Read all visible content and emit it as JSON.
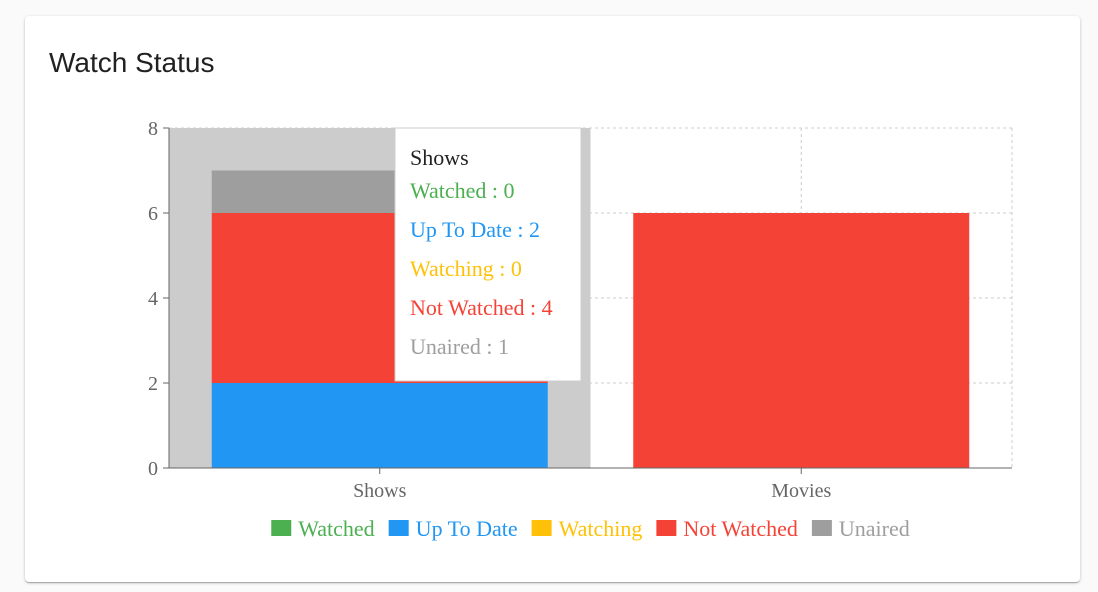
{
  "card": {
    "title": "Watch Status"
  },
  "chart_data": {
    "type": "bar",
    "stacked": true,
    "categories": [
      "Shows",
      "Movies"
    ],
    "series": [
      {
        "name": "Watched",
        "values": [
          0,
          0
        ],
        "color": "#4caf50"
      },
      {
        "name": "Up To Date",
        "values": [
          2,
          0
        ],
        "color": "#2196f3"
      },
      {
        "name": "Watching",
        "values": [
          0,
          0
        ],
        "color": "#ffc107"
      },
      {
        "name": "Not Watched",
        "values": [
          4,
          6
        ],
        "color": "#f44336"
      },
      {
        "name": "Unaired",
        "values": [
          1,
          0
        ],
        "color": "#9e9e9e"
      }
    ],
    "ylim": [
      0,
      8
    ],
    "yticks": [
      "0",
      "2",
      "4",
      "6",
      "8"
    ],
    "grid": true,
    "legend": "bottom",
    "active_category": "Shows",
    "tooltip": {
      "title": "Shows",
      "items": [
        {
          "label": "Watched : 0",
          "color": "#4caf50"
        },
        {
          "label": "Up To Date : 2",
          "color": "#2196f3"
        },
        {
          "label": "Watching : 0",
          "color": "#ffc107"
        },
        {
          "label": "Not Watched : 4",
          "color": "#f44336"
        },
        {
          "label": "Unaired : 1",
          "color": "#9e9e9e"
        }
      ]
    }
  }
}
